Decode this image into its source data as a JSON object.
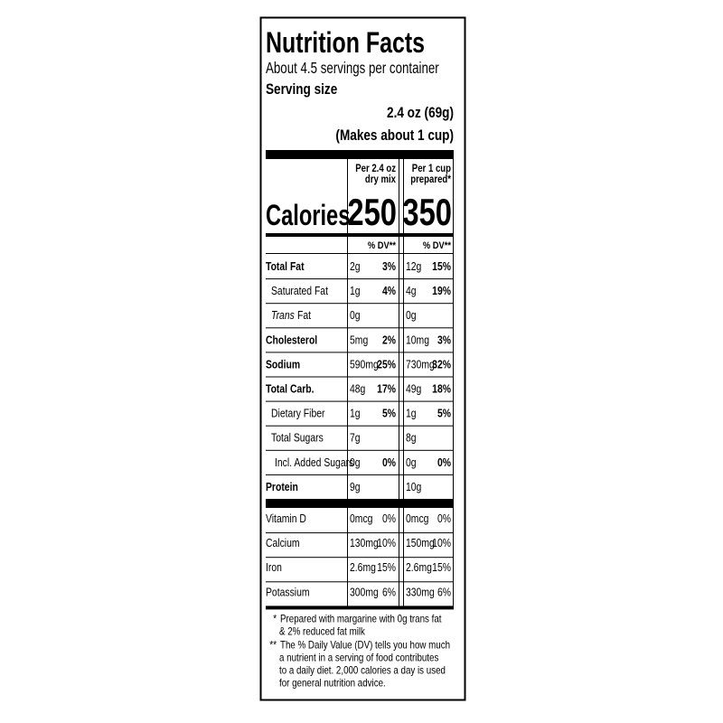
{
  "header": {
    "title": "Nutrition Facts",
    "servings": "About 4.5 servings per container",
    "serving_size_label": "Serving size",
    "serving_size": "2.4 oz (69g)",
    "serving_size_note": "(Makes about 1 cup)"
  },
  "columns": [
    {
      "heading": [
        "Per 2.4 oz",
        "dry mix"
      ],
      "calories": "250",
      "dv_heading": "% DV**"
    },
    {
      "heading": [
        "Per 1 cup",
        "prepared*"
      ],
      "calories": "350",
      "dv_heading": "% DV**"
    }
  ],
  "calories_label": "Calories",
  "nutrients": [
    {
      "name": "Total Fat",
      "bold": true,
      "values": [
        [
          "2g",
          "3%"
        ],
        [
          "12g",
          "15%"
        ]
      ]
    },
    {
      "name": "Saturated Fat",
      "values": [
        [
          "1g",
          "4%"
        ],
        [
          "4g",
          "19%"
        ]
      ]
    },
    {
      "name_italic": "Trans",
      "name": "Fat",
      "values": [
        [
          "0g"
        ],
        [
          "0g"
        ]
      ]
    },
    {
      "name": "Cholesterol",
      "bold": true,
      "values": [
        [
          "5mg",
          "2%"
        ],
        [
          "10mg",
          "3%"
        ]
      ]
    },
    {
      "name": "Sodium",
      "bold": true,
      "values": [
        [
          "590mg",
          "25%"
        ],
        [
          "730mg",
          "32%"
        ]
      ]
    },
    {
      "name": "Total Carb.",
      "bold": true,
      "values": [
        [
          "48g",
          "17%"
        ],
        [
          "49g",
          "18%"
        ]
      ]
    },
    {
      "name": "Dietary Fiber",
      "values": [
        [
          "1g",
          "5%"
        ],
        [
          "1g",
          "5%"
        ]
      ]
    },
    {
      "name": "Total Sugars",
      "values": [
        [
          "7g"
        ],
        [
          "8g"
        ]
      ]
    },
    {
      "name": "Incl. Added Sugars",
      "values": [
        [
          "0g",
          "0%"
        ],
        [
          "0g",
          "0%"
        ]
      ]
    },
    {
      "name": "Protein",
      "bold": true,
      "values": [
        [
          "9g"
        ],
        [
          "10g"
        ]
      ]
    }
  ],
  "vitamins": [
    {
      "name": "Vitamin D",
      "values": [
        [
          "0mcg",
          "0%"
        ],
        [
          "0mcg",
          "0%"
        ]
      ]
    },
    {
      "name": "Calcium",
      "values": [
        [
          "130mg",
          "10%"
        ],
        [
          "150mg",
          "10%"
        ]
      ]
    },
    {
      "name": "Iron",
      "values": [
        [
          "2.6mg",
          "15%"
        ],
        [
          "2.6mg",
          "15%"
        ]
      ]
    },
    {
      "name": "Potassium",
      "values": [
        [
          "300mg",
          "6%"
        ],
        [
          "330mg",
          "6%"
        ]
      ]
    }
  ],
  "footnotes": [
    {
      "marker": "*",
      "lines": [
        "Prepared with margarine with 0g trans fat",
        "& 2% reduced fat milk"
      ]
    },
    {
      "marker": "**",
      "lines": [
        "The % Daily Value (DV) tells you how much",
        "a nutrient in a serving of food contributes",
        "to a daily diet. 2,000 calories a day is used",
        "for general nutrition advice."
      ]
    }
  ]
}
